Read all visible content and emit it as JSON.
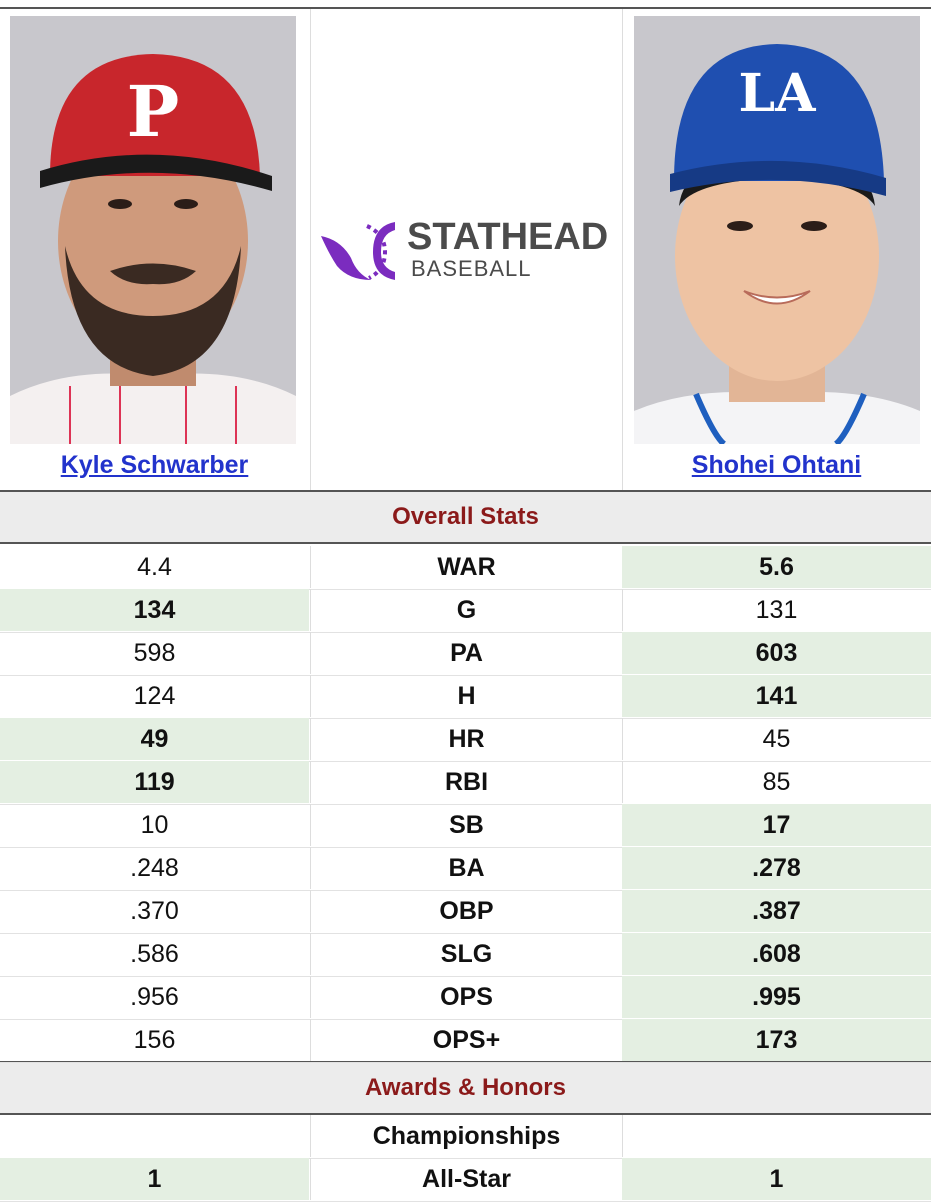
{
  "players": {
    "left": {
      "name": "Kyle Schwarber",
      "cap_logo": "P"
    },
    "right": {
      "name": "Shohei Ohtani",
      "cap_logo": "LA"
    }
  },
  "logo": {
    "line1": "STATHEAD",
    "line2": "BASEBALL"
  },
  "sections": {
    "overall": "Overall Stats",
    "awards": "Awards & Honors"
  },
  "stats": [
    {
      "label": "WAR",
      "left": "4.4",
      "right": "5.6",
      "winner": "right"
    },
    {
      "label": "G",
      "left": "134",
      "right": "131",
      "winner": "left"
    },
    {
      "label": "PA",
      "left": "598",
      "right": "603",
      "winner": "right"
    },
    {
      "label": "H",
      "left": "124",
      "right": "141",
      "winner": "right"
    },
    {
      "label": "HR",
      "left": "49",
      "right": "45",
      "winner": "left"
    },
    {
      "label": "RBI",
      "left": "119",
      "right": "85",
      "winner": "left"
    },
    {
      "label": "SB",
      "left": "10",
      "right": "17",
      "winner": "right"
    },
    {
      "label": "BA",
      "left": ".248",
      "right": ".278",
      "winner": "right"
    },
    {
      "label": "OBP",
      "left": ".370",
      "right": ".387",
      "winner": "right"
    },
    {
      "label": "SLG",
      "left": ".586",
      "right": ".608",
      "winner": "right"
    },
    {
      "label": "OPS",
      "left": ".956",
      "right": ".995",
      "winner": "right"
    },
    {
      "label": "OPS+",
      "left": "156",
      "right": "173",
      "winner": "right"
    }
  ],
  "awards": [
    {
      "label": "Championships",
      "left": "",
      "right": "",
      "winner": "none"
    },
    {
      "label": "All-Star",
      "left": "1",
      "right": "1",
      "winner": "both"
    }
  ],
  "colors": {
    "accent": "#8b1a1a",
    "link": "#2233cc",
    "win_bg": "#e4efe2",
    "logo_purple": "#7b2cbf"
  }
}
